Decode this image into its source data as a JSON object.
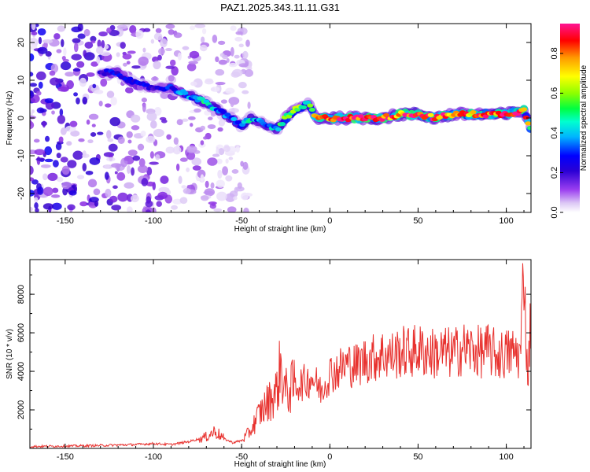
{
  "chart_data": [
    {
      "type": "heatmap",
      "title": "PAZ1.2025.343.11.11.G31",
      "xlabel": "Height of straight line (km)",
      "ylabel": "Frequency (Hz)",
      "xlim": [
        -170,
        114
      ],
      "ylim": [
        -25,
        25
      ],
      "x_ticks": [
        -150,
        -100,
        -50,
        0,
        50,
        100
      ],
      "y_ticks": [
        20,
        10,
        0,
        -10,
        -20
      ],
      "colorbar": {
        "label": "Normalized spectral amplitude",
        "range": [
          0,
          0.95
        ],
        "ticks": [
          0.0,
          0.2,
          0.4,
          0.6,
          0.8
        ],
        "colormap": [
          "#ffffff",
          "#d9c3f5",
          "#8a2be2",
          "#3300cc",
          "#0000ff",
          "#00c8ff",
          "#00ff80",
          "#9cff00",
          "#ffff00",
          "#ff9900",
          "#ff0000",
          "#ff1493"
        ]
      },
      "ridge": {
        "x": [
          -130,
          -120,
          -110,
          -100,
          -90,
          -80,
          -70,
          -60,
          -50,
          -45,
          -40,
          -35,
          -30,
          -25,
          -20,
          -15,
          -12,
          -8,
          0,
          10,
          20,
          30,
          40,
          50,
          60,
          70,
          80,
          90,
          100,
          110,
          114
        ],
        "freq": [
          12,
          12,
          9,
          8,
          8,
          6,
          4,
          1,
          -2,
          0,
          -1,
          -2,
          -3,
          0,
          2,
          3,
          4,
          0,
          0,
          0,
          0,
          0,
          1,
          1,
          0,
          1,
          1,
          1,
          1,
          2,
          -3
        ],
        "amplitude": [
          0.3,
          0.35,
          0.35,
          0.3,
          0.35,
          0.45,
          0.5,
          0.4,
          0.45,
          0.5,
          0.4,
          0.4,
          0.5,
          0.6,
          0.7,
          0.6,
          0.5,
          0.8,
          0.9,
          0.9,
          0.95,
          0.9,
          0.9,
          0.95,
          0.9,
          0.9,
          0.85,
          0.9,
          0.95,
          0.9,
          0.6
        ]
      },
      "noise_region_km": [
        -170,
        -60
      ]
    },
    {
      "type": "line",
      "title": "",
      "xlabel": "Height of straight line (km)",
      "ylabel": "SNR (10 * v/v)",
      "xlim": [
        -170,
        114
      ],
      "ylim": [
        0,
        9800
      ],
      "x_ticks": [
        -150,
        -100,
        -50,
        0,
        50,
        100
      ],
      "y_ticks": [
        2000,
        4000,
        6000,
        8000
      ],
      "line_color": "#e8322f",
      "series": [
        {
          "name": "SNR",
          "x": [
            -170,
            -150,
            -130,
            -110,
            -100,
            -90,
            -80,
            -70,
            -65,
            -60,
            -55,
            -50,
            -45,
            -40,
            -35,
            -30,
            -28,
            -25,
            -20,
            -15,
            -10,
            -5,
            0,
            5,
            10,
            15,
            20,
            25,
            30,
            35,
            40,
            45,
            50,
            55,
            60,
            65,
            70,
            75,
            80,
            85,
            90,
            95,
            100,
            105,
            108,
            110,
            112,
            114
          ],
          "values": [
            100,
            120,
            150,
            200,
            250,
            200,
            350,
            600,
            900,
            500,
            300,
            400,
            900,
            1800,
            2400,
            3000,
            4300,
            2900,
            3300,
            3400,
            3700,
            3000,
            3900,
            4100,
            4400,
            4300,
            4600,
            4700,
            4900,
            4800,
            5000,
            5000,
            5100,
            5000,
            4900,
            5000,
            4900,
            5200,
            5100,
            5000,
            5100,
            4800,
            4900,
            5000,
            4800,
            9700,
            3500,
            7000
          ]
        }
      ]
    }
  ]
}
